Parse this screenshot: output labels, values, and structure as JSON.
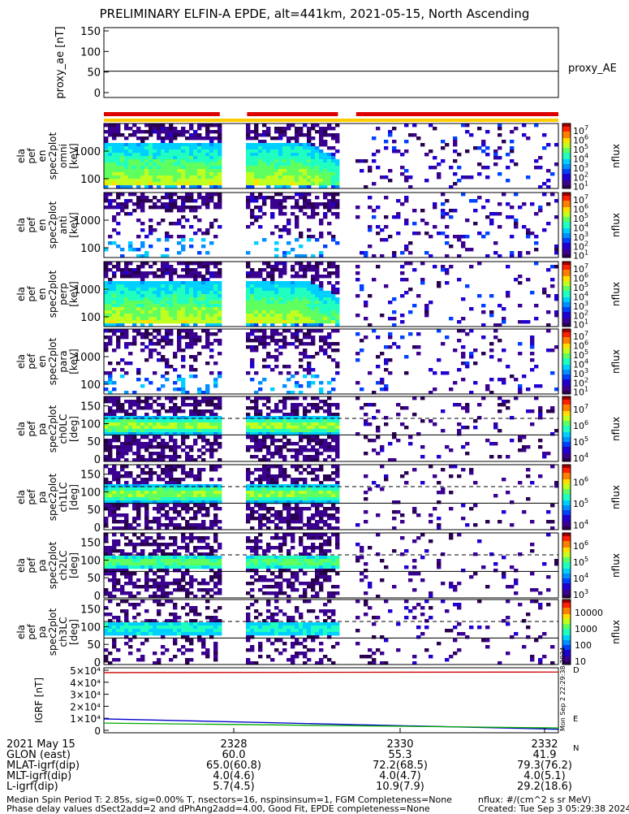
{
  "title": "PRELIMINARY ELFIN-A EPDE, alt=441km, 2021-05-15, North Ascending",
  "chart_data": {
    "type": "heatmap",
    "x_ticks": [
      "2328",
      "2330",
      "2332"
    ],
    "ephemeris": {
      "date_label": "2021 May 15",
      "rows": [
        {
          "name": "GLON (east)",
          "values": [
            "60.0",
            "55.3",
            "41.9"
          ]
        },
        {
          "name": "MLAT-igrf(dip)",
          "values": [
            "65.0(60.8)",
            "72.2(68.5)",
            "79.3(76.2)"
          ]
        },
        {
          "name": "MLT-igrf(dip)",
          "values": [
            "4.0(4.6)",
            "4.0(4.7)",
            "4.0(5.1)"
          ]
        },
        {
          "name": "L-igrf(dip)",
          "values": [
            "5.7(4.5)",
            "10.9(7.9)",
            "29.2(18.6)"
          ]
        }
      ]
    },
    "proxy_ae": {
      "ylabel": "proxy_ae [nT]",
      "yticks": [
        "0",
        "50",
        "100",
        "150"
      ],
      "ylim": [
        0,
        150
      ],
      "legend": "proxy_AE",
      "value": 52
    },
    "coverage_bars": {
      "segments_fraction": [
        [
          0.0,
          0.255
        ],
        [
          0.315,
          0.515
        ],
        [
          0.555,
          1.0
        ]
      ]
    },
    "panels": [
      {
        "id": "en1",
        "ylabel": [
          "ela",
          "pef",
          "en",
          "spec2plot",
          "omni",
          "[keV]"
        ],
        "yticks": [
          "100",
          "1000"
        ],
        "ztick_exps": [
          "1",
          "2",
          "3",
          "4",
          "5",
          "6",
          "7"
        ],
        "zlabel": "nflux",
        "kind": "energy",
        "strength": 1.0
      },
      {
        "id": "en2",
        "ylabel": [
          "ela",
          "pef",
          "en",
          "spec2plot",
          "anti",
          "[keV]"
        ],
        "yticks": [
          "100",
          "1000"
        ],
        "ztick_exps": [
          "1",
          "2",
          "3",
          "4",
          "5",
          "6",
          "7"
        ],
        "zlabel": "nflux",
        "kind": "energy",
        "strength": 0.35
      },
      {
        "id": "en3",
        "ylabel": [
          "ela",
          "pef",
          "en",
          "spec2plot",
          "perp",
          "[keV]"
        ],
        "yticks": [
          "100",
          "1000"
        ],
        "ztick_exps": [
          "1",
          "2",
          "3",
          "4",
          "5",
          "6",
          "7"
        ],
        "zlabel": "nflux",
        "kind": "energy",
        "strength": 1.0
      },
      {
        "id": "en4",
        "ylabel": [
          "ela",
          "pef",
          "en",
          "spec2plot",
          "para",
          "[keV]"
        ],
        "yticks": [
          "100",
          "1000"
        ],
        "ztick_exps": [
          "1",
          "2",
          "3",
          "4",
          "5",
          "6",
          "7"
        ],
        "zlabel": "nflux",
        "kind": "energy",
        "strength": 0.4
      },
      {
        "id": "pa0",
        "ylabel": [
          "ela",
          "pef",
          "pa",
          "spec2plot",
          "ch0LC",
          "[deg]"
        ],
        "yticks": [
          "0",
          "50",
          "100",
          "150"
        ],
        "ztick_exps": [
          "4",
          "5",
          "6",
          "7"
        ],
        "zlabel": "nflux",
        "kind": "pa",
        "strength": 1.0
      },
      {
        "id": "pa1",
        "ylabel": [
          "ela",
          "pef",
          "pa",
          "spec2plot",
          "ch1LC",
          "[deg]"
        ],
        "yticks": [
          "0",
          "50",
          "100",
          "150"
        ],
        "ztick_exps": [
          "4",
          "5",
          "6"
        ],
        "zlabel": "nflux",
        "kind": "pa",
        "strength": 0.95
      },
      {
        "id": "pa2",
        "ylabel": [
          "ela",
          "pef",
          "pa",
          "spec2plot",
          "ch2LC",
          "[deg]"
        ],
        "yticks": [
          "0",
          "50",
          "100",
          "150"
        ],
        "ztick_exps": [
          "3",
          "4",
          "5",
          "6"
        ],
        "zlabel": "nflux",
        "kind": "pa",
        "strength": 0.8
      },
      {
        "id": "pa3",
        "ylabel": [
          "ela",
          "pef",
          "pa",
          "spec2plot",
          "ch3LC",
          "[deg]"
        ],
        "yticks": [
          "0",
          "50",
          "100",
          "150"
        ],
        "ztick_plain": [
          "10",
          "100",
          "1000",
          "10000"
        ],
        "zlabel": "nflux",
        "kind": "pa",
        "strength": 0.45
      }
    ],
    "igrf": {
      "ylabel": "IGRF [nT]",
      "yticks": [
        "0",
        "1×10⁴",
        "2×10⁴",
        "3×10⁴",
        "4×10⁴",
        "5×10⁴"
      ],
      "ylim": [
        0,
        50000
      ],
      "series": [
        {
          "color": "#cc0000",
          "start": 48000,
          "end": 48500
        },
        {
          "color": "#0000cc",
          "start": 9500,
          "end": 900
        },
        {
          "color": "#00aa00",
          "start": 6000,
          "end": 2000
        }
      ],
      "side_labels": [
        "D",
        "E",
        "N"
      ]
    }
  },
  "footer": {
    "line1": "Median Spin Period T: 2.85s, sig=0.00% T, nsectors=16, nspinsinsum=1, FGM Completeness=None",
    "line2": "Phase delay values dSect2add=2 and dPhAng2add=4.00, Good Fit, EPDE completeness=None",
    "units": "nflux: #/(cm^2 s sr MeV)",
    "created": "Created: Tue Sep  3 05:29:38 2024",
    "side_stamp": "Mon Sep  2 22:29:38 2024"
  },
  "colors": {
    "coverage_red": "#dd0000",
    "coverage_yellow": "#ffcc00"
  }
}
